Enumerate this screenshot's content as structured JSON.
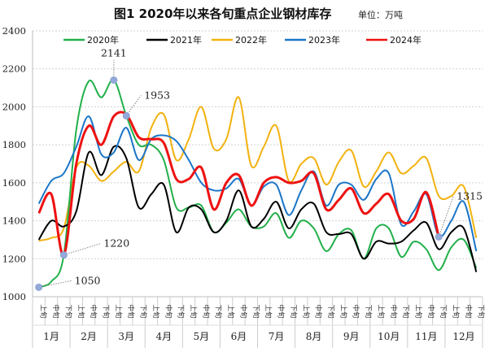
{
  "chart_data": {
    "type": "line",
    "title": "图1  2020年以来各旬重点企业钢材库存",
    "unit_label": "单位：万吨",
    "xlabel": "",
    "ylabel": "",
    "ylim": [
      1000,
      2400
    ],
    "yticks": [
      1000,
      1200,
      1400,
      1600,
      1800,
      2000,
      2200,
      2400
    ],
    "grid": true,
    "legend_position": "top",
    "dekads": [
      "上旬",
      "中旬",
      "下旬"
    ],
    "months": [
      "1月",
      "2月",
      "3月",
      "4月",
      "5月",
      "6月",
      "7月",
      "8月",
      "9月",
      "10月",
      "11月",
      "12月"
    ],
    "series": [
      {
        "name": "2020年",
        "color": "#22b04b",
        "values": [
          1050,
          1080,
          1220,
          1880,
          2135,
          2050,
          2141,
          1953,
          1800,
          1800,
          1720,
          1470,
          1470,
          1480,
          1340,
          1390,
          1460,
          1370,
          1370,
          1440,
          1310,
          1400,
          1360,
          1240,
          1330,
          1350,
          1200,
          1360,
          1360,
          1210,
          1290,
          1250,
          1140,
          1260,
          1300,
          1150
        ]
      },
      {
        "name": "2021年",
        "color": "#000000",
        "values": [
          1300,
          1400,
          1370,
          1450,
          1760,
          1640,
          1790,
          1730,
          1470,
          1540,
          1590,
          1340,
          1470,
          1460,
          1340,
          1400,
          1560,
          1370,
          1410,
          1500,
          1360,
          1460,
          1490,
          1340,
          1330,
          1330,
          1200,
          1290,
          1280,
          1290,
          1350,
          1390,
          1250,
          1340,
          1360,
          1130
        ]
      },
      {
        "name": "2022年",
        "color": "#f2b20f",
        "values": [
          1295,
          1310,
          1360,
          1680,
          1690,
          1610,
          1660,
          1710,
          1660,
          1890,
          1960,
          1720,
          1830,
          2000,
          1780,
          1830,
          2050,
          1690,
          1790,
          1900,
          1610,
          1700,
          1730,
          1590,
          1710,
          1770,
          1580,
          1660,
          1760,
          1650,
          1690,
          1730,
          1530,
          1530,
          1580,
          1310
        ]
      },
      {
        "name": "2023年",
        "color": "#1b76c8",
        "values": [
          1490,
          1610,
          1650,
          1790,
          1950,
          1750,
          1760,
          1890,
          1720,
          1830,
          1850,
          1820,
          1720,
          1600,
          1560,
          1570,
          1620,
          1480,
          1580,
          1590,
          1430,
          1560,
          1660,
          1480,
          1590,
          1590,
          1510,
          1620,
          1650,
          1380,
          1450,
          1540,
          1320,
          1400,
          1500,
          1240
        ]
      },
      {
        "name": "2024年",
        "color": "#ee1111",
        "values": [
          1440,
          1540,
          1220,
          1700,
          1900,
          1800,
          1950,
          1960,
          1840,
          1830,
          1810,
          1620,
          1620,
          1680,
          1460,
          1600,
          1640,
          1480,
          1600,
          1630,
          1600,
          1610,
          1650,
          1460,
          1510,
          1570,
          1440,
          1490,
          1540,
          1400,
          1410,
          1550,
          1315,
          null,
          null,
          null
        ]
      }
    ],
    "annotations": [
      {
        "label": "1050",
        "series": "2020年",
        "index": 0
      },
      {
        "label": "1220",
        "series": "2024年",
        "index": 2
      },
      {
        "label": "2141",
        "series": "2020年",
        "index": 6
      },
      {
        "label": "1953",
        "series": "2020年",
        "index": 7
      },
      {
        "label": "1315",
        "series": "2024年",
        "index": 32
      }
    ]
  }
}
